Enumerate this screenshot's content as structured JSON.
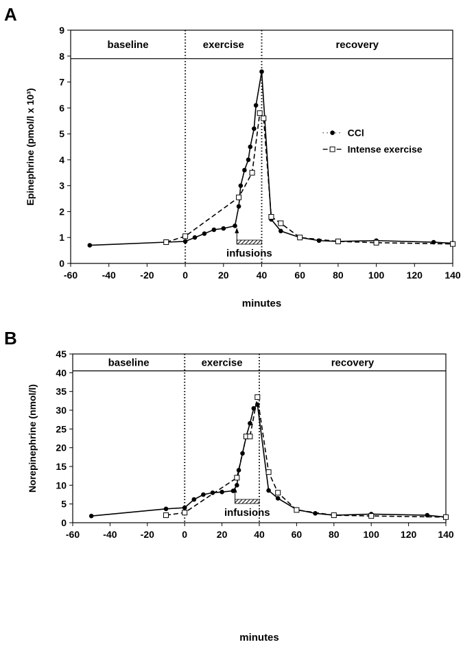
{
  "chart_data": [
    {
      "type": "line",
      "panel_label": "A",
      "ylabel": "Epinephrine (pmol/l x 10³)",
      "xlabel": "minutes",
      "xlim": [
        -60,
        140
      ],
      "xticks": [
        -60,
        -40,
        -20,
        0,
        20,
        40,
        60,
        80,
        100,
        120,
        140
      ],
      "ylim": [
        0,
        9
      ],
      "yticks": [
        0,
        1,
        2,
        3,
        4,
        5,
        6,
        7,
        8,
        9
      ],
      "phases": [
        "baseline",
        "exercise",
        "recovery"
      ],
      "phase_lines": [
        0,
        40
      ],
      "phase_band_bottom": 7.9,
      "infusion": {
        "label": "infusions",
        "from": 27,
        "to": 40
      },
      "legend": "right",
      "series": [
        {
          "name": "CCl",
          "color": "#000000",
          "marker": "circle",
          "dash": false,
          "x": [
            -50,
            0,
            5,
            10,
            15,
            20,
            26,
            28,
            29,
            31,
            33,
            34,
            36,
            37,
            40,
            45,
            50,
            60,
            70,
            80,
            100,
            130,
            140
          ],
          "values": [
            0.7,
            0.85,
            1.0,
            1.15,
            1.3,
            1.35,
            1.45,
            2.2,
            3.0,
            3.6,
            4.0,
            4.5,
            5.2,
            6.1,
            7.4,
            1.7,
            1.25,
            1.0,
            0.88,
            0.85,
            0.88,
            0.82,
            0.78
          ]
        },
        {
          "name": "Intense exercise",
          "color": "#000000",
          "marker": "square",
          "dash": true,
          "x": [
            -10,
            0,
            28,
            35,
            39,
            41,
            45,
            50,
            60,
            80,
            100,
            140
          ],
          "values": [
            0.82,
            1.05,
            2.55,
            3.5,
            5.8,
            5.6,
            1.8,
            1.55,
            1.0,
            0.85,
            0.8,
            0.75
          ]
        }
      ]
    },
    {
      "type": "line",
      "panel_label": "B",
      "ylabel": "Norepinephrine (nmol/l)",
      "xlabel": "minutes",
      "xlim": [
        -60,
        140
      ],
      "xticks": [
        -60,
        -40,
        -20,
        0,
        20,
        40,
        60,
        80,
        100,
        120,
        140
      ],
      "ylim": [
        0,
        45
      ],
      "yticks": [
        0,
        5,
        10,
        15,
        20,
        25,
        30,
        35,
        40,
        45
      ],
      "phases": [
        "baseline",
        "exercise",
        "recovery"
      ],
      "phase_lines": [
        0,
        40
      ],
      "phase_band_bottom": 40.5,
      "infusion": {
        "label": "infusions",
        "from": 27,
        "to": 40
      },
      "series": [
        {
          "color": "#000000",
          "marker": "circle",
          "dash": false,
          "x": [
            -50,
            -10,
            0,
            5,
            10,
            15,
            20,
            26,
            28,
            29,
            31,
            33,
            35,
            37,
            39,
            45,
            50,
            60,
            70,
            80,
            100,
            130,
            140
          ],
          "values": [
            1.8,
            3.7,
            4.0,
            6.2,
            7.5,
            8.0,
            8.2,
            8.5,
            10.0,
            14.0,
            18.5,
            23.0,
            26.5,
            30.5,
            31.5,
            8.6,
            6.5,
            3.5,
            2.5,
            2.0,
            2.3,
            2.0,
            1.5
          ]
        },
        {
          "color": "#000000",
          "marker": "square",
          "dash": true,
          "x": [
            -10,
            0,
            28,
            33,
            35,
            39,
            45,
            50,
            60,
            80,
            100,
            140
          ],
          "values": [
            2.0,
            2.7,
            12.0,
            23.0,
            23.0,
            33.5,
            13.5,
            8.0,
            3.4,
            2.0,
            1.8,
            1.5
          ]
        }
      ]
    }
  ]
}
